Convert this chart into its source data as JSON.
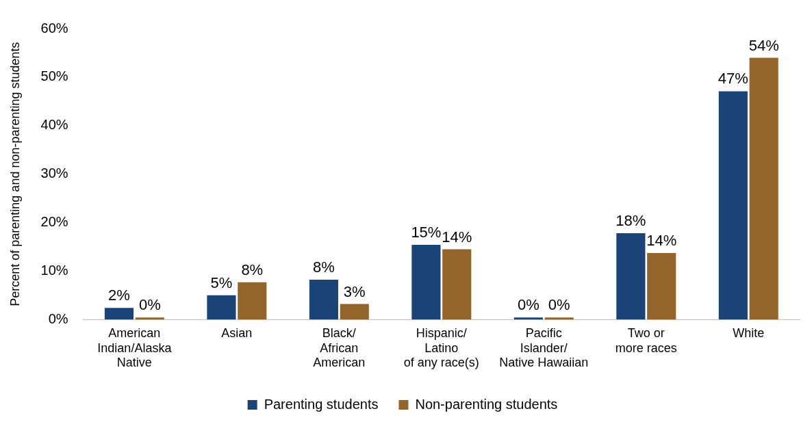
{
  "chart_data": {
    "type": "bar",
    "ylabel": "Percent of parenting and non-parenting students",
    "categories": [
      "American\nIndian/Alaska\nNative",
      "Asian",
      "Black/\nAfrican\nAmerican",
      "Hispanic/\nLatino\nof any race(s)",
      "Pacific\nIslander/\nNative Hawaiian",
      "Two or\nmore races",
      "White"
    ],
    "series": [
      {
        "name": "Parenting students",
        "color": "#1a4478",
        "values": [
          2.4,
          5.0,
          8.2,
          15.4,
          0.4,
          17.8,
          47.1
        ],
        "value_labels": [
          "2%",
          "5%",
          "8%",
          "15%",
          "0%",
          "18%",
          "47%"
        ]
      },
      {
        "name": "Non-parenting students",
        "color": "#94652b",
        "values": [
          0.4,
          7.7,
          3.2,
          14.5,
          0.4,
          13.7,
          54.0
        ],
        "value_labels": [
          "0%",
          "8%",
          "3%",
          "14%",
          "0%",
          "14%",
          "54%"
        ]
      }
    ],
    "ylim": [
      0,
      60
    ],
    "yticks": [
      {
        "value": 0,
        "label": "0%"
      },
      {
        "value": 10,
        "label": "10%"
      },
      {
        "value": 20,
        "label": "20%"
      },
      {
        "value": 30,
        "label": "30%"
      },
      {
        "value": 40,
        "label": "40%"
      },
      {
        "value": 50,
        "label": "50%"
      },
      {
        "value": 60,
        "label": "60%"
      }
    ],
    "grid": false,
    "legend": "bottom"
  }
}
